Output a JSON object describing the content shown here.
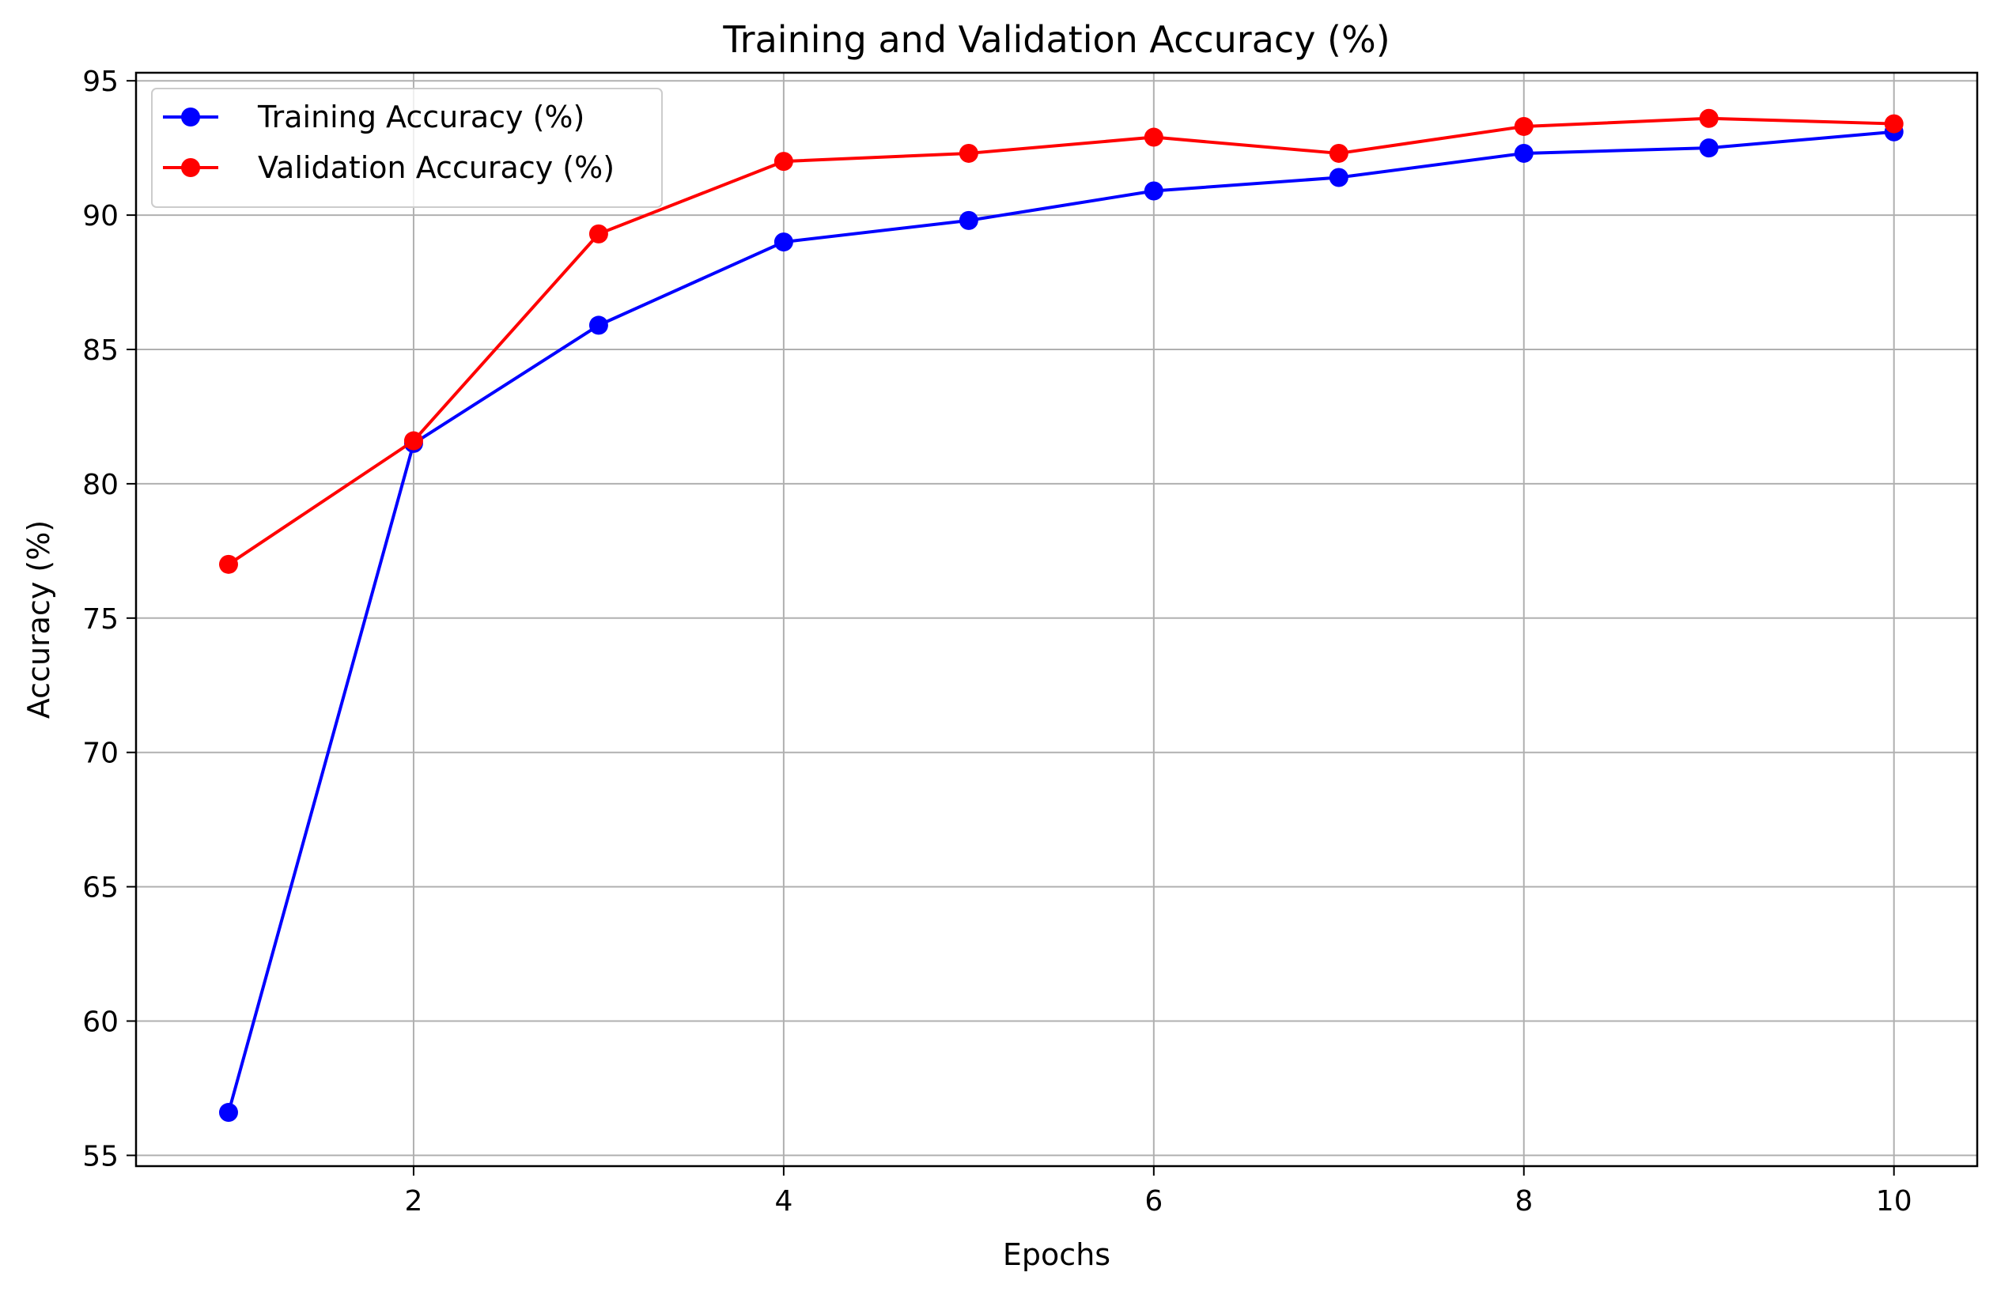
{
  "chart_data": {
    "type": "line",
    "title": "Training and Validation Accuracy (%)",
    "xlabel": "Epochs",
    "ylabel": "Accuracy (%)",
    "x": [
      1,
      2,
      3,
      4,
      5,
      6,
      7,
      8,
      9,
      10
    ],
    "xlim": [
      0.5,
      10.45
    ],
    "ylim": [
      54.6,
      95.3
    ],
    "xticks": [
      2,
      4,
      6,
      8,
      10
    ],
    "yticks": [
      55,
      60,
      65,
      70,
      75,
      80,
      85,
      90,
      95
    ],
    "grid": true,
    "legend_position": "top-left",
    "series": [
      {
        "name": "Training Accuracy (%)",
        "color": "#0000ff",
        "marker": "circle",
        "values": [
          56.6,
          81.5,
          85.9,
          89.0,
          89.8,
          90.9,
          91.4,
          92.3,
          92.5,
          93.1
        ]
      },
      {
        "name": "Validation Accuracy (%)",
        "color": "#ff0000",
        "marker": "circle",
        "values": [
          77.0,
          81.6,
          89.3,
          92.0,
          92.3,
          92.9,
          92.3,
          93.3,
          93.6,
          93.4
        ]
      }
    ]
  }
}
